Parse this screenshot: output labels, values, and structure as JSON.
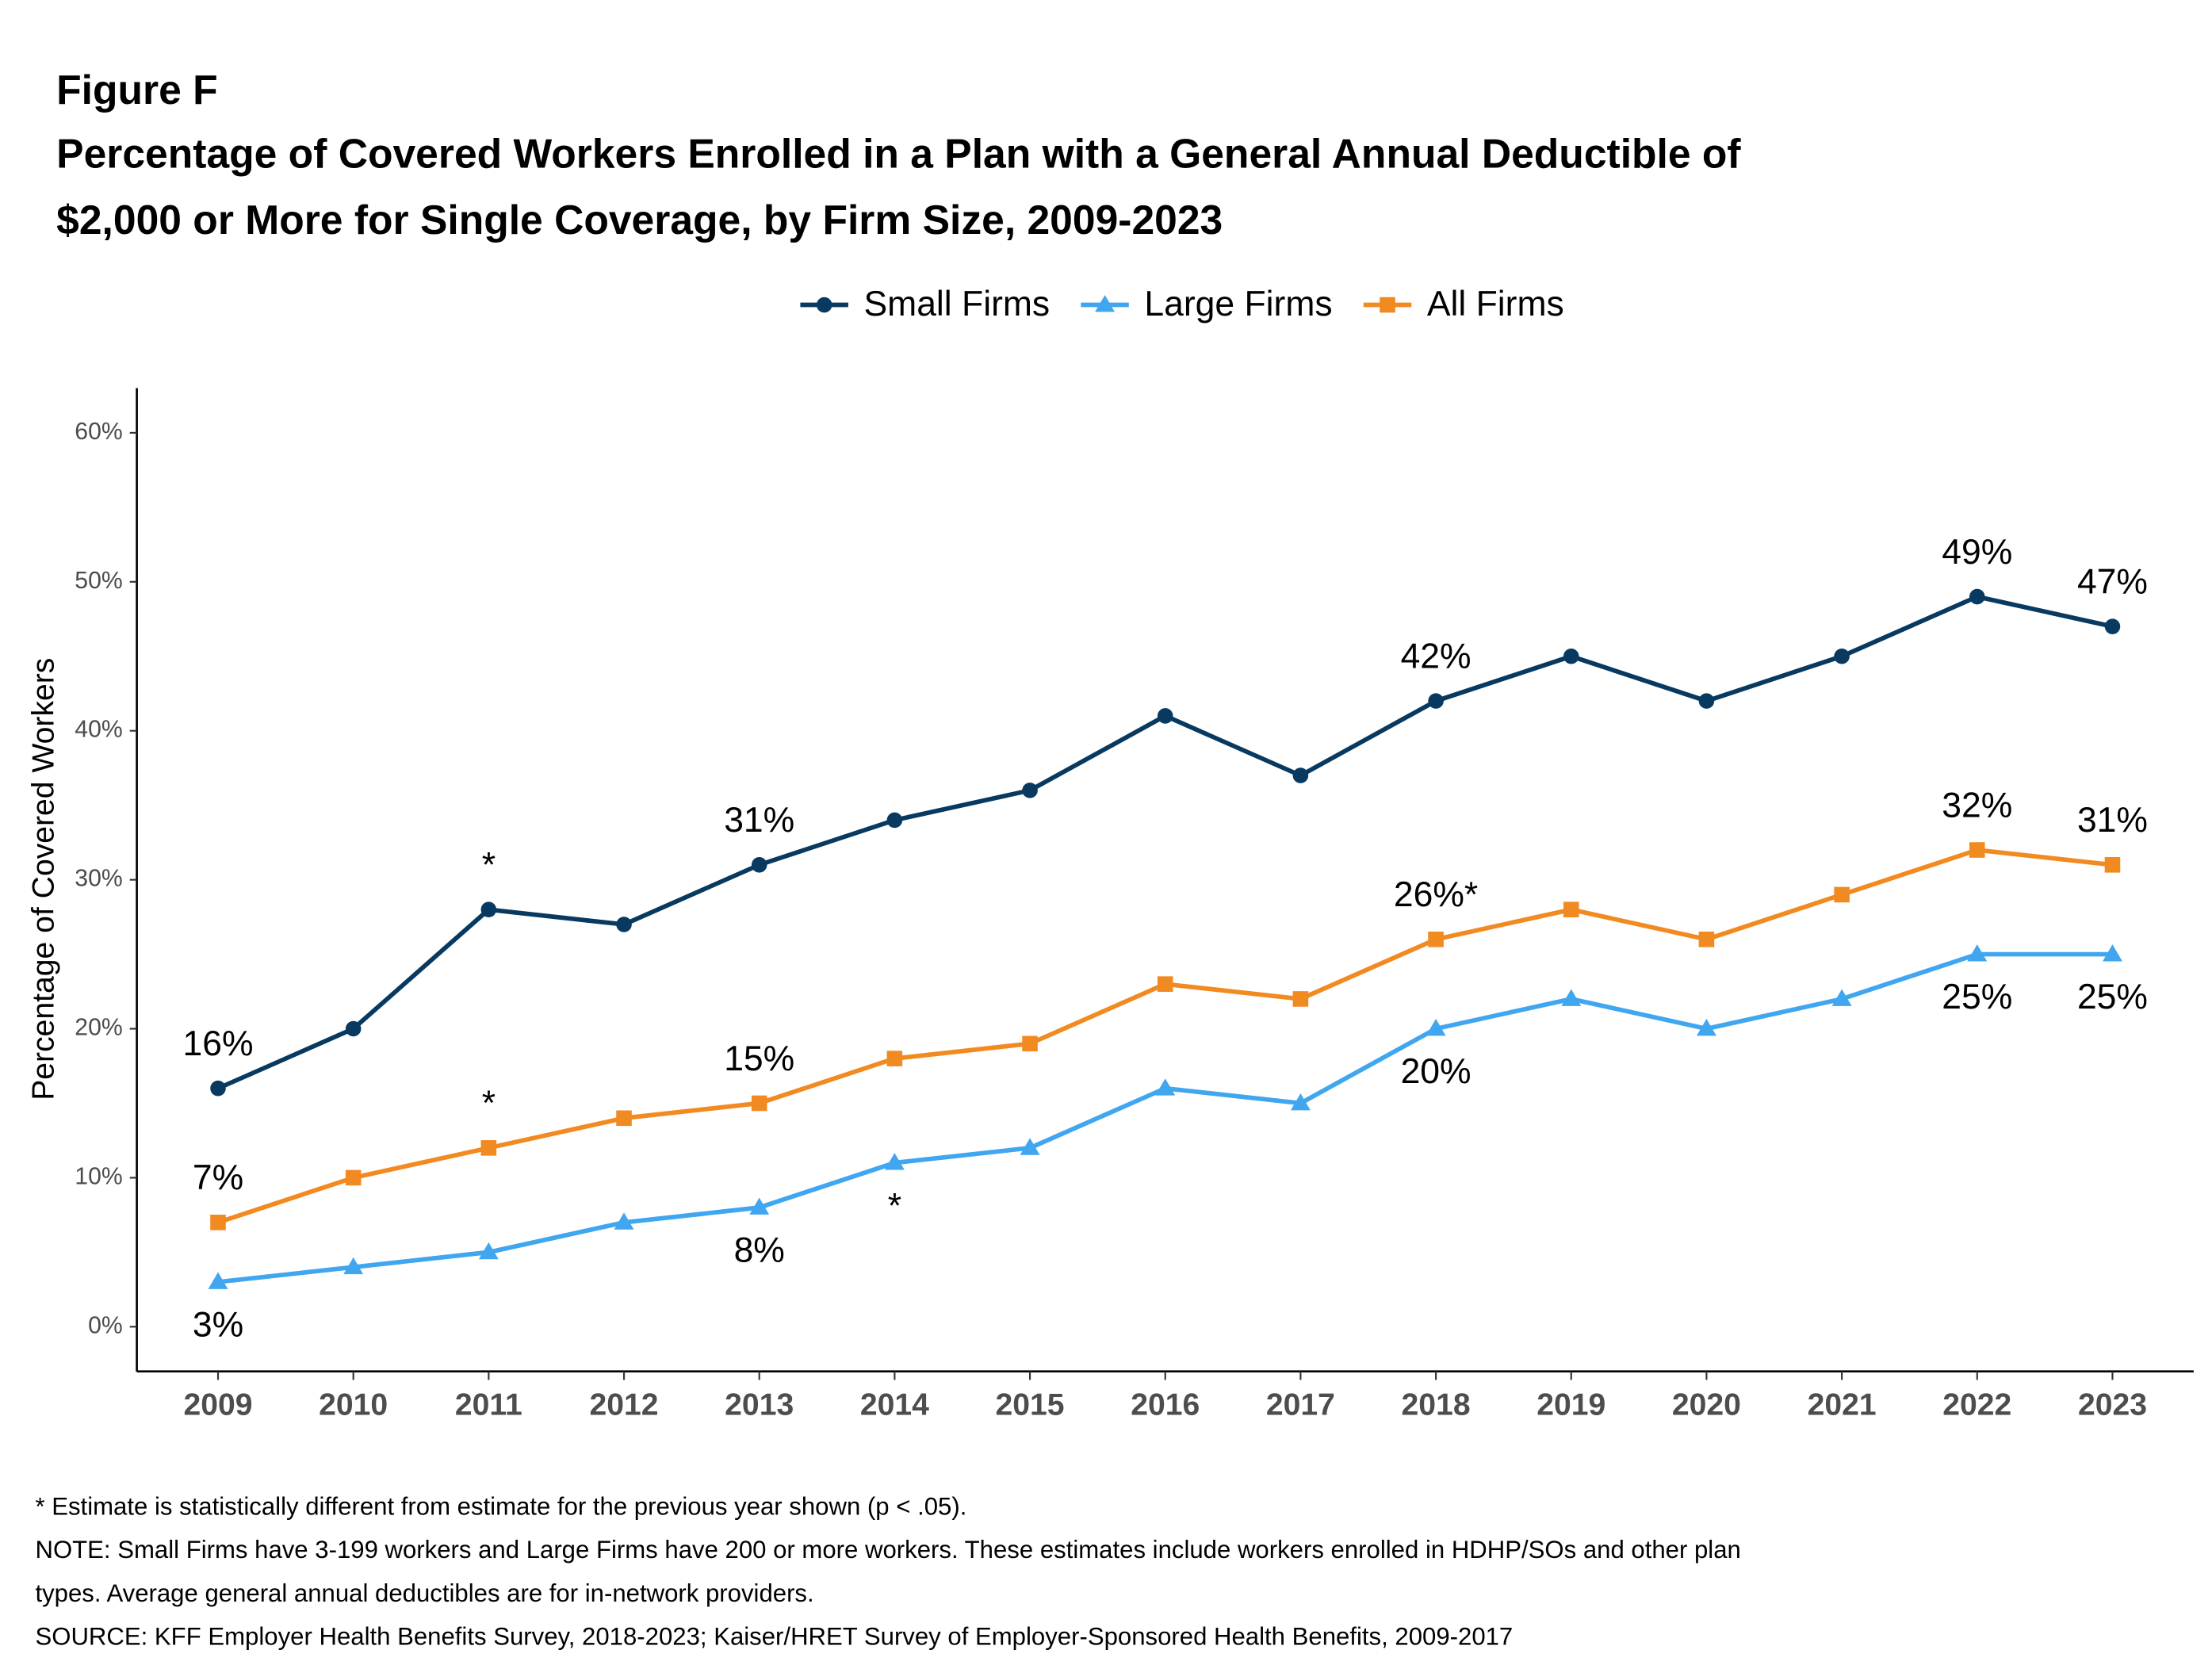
{
  "chart_data": {
    "type": "line",
    "figure_label": "Figure F",
    "title_lines": [
      "Percentage of Covered Workers Enrolled in a Plan with a General Annual Deductible of",
      "$2,000 or More for Single Coverage, by Firm Size, 2009-2023"
    ],
    "y_axis_label": "Percentage of Covered Workers",
    "categories": [
      "2009",
      "2010",
      "2011",
      "2012",
      "2013",
      "2014",
      "2015",
      "2016",
      "2017",
      "2018",
      "2019",
      "2020",
      "2021",
      "2022",
      "2023"
    ],
    "series": [
      {
        "name": "Small Firms",
        "color": "#083a61",
        "marker": "circle",
        "label_position": "above",
        "values": [
          16,
          20,
          28,
          27,
          31,
          34,
          36,
          41,
          37,
          42,
          45,
          42,
          45,
          49,
          47
        ],
        "value_labels": [
          "16%",
          null,
          "*",
          null,
          "31%",
          null,
          null,
          null,
          null,
          "42%",
          null,
          null,
          null,
          "49%",
          "47%"
        ]
      },
      {
        "name": "Large Firms",
        "color": "#41a6f0",
        "marker": "triangle",
        "label_position": "below",
        "values": [
          3,
          4,
          5,
          7,
          8,
          11,
          12,
          16,
          15,
          20,
          22,
          20,
          22,
          25,
          25
        ],
        "value_labels": [
          "3%",
          null,
          null,
          null,
          "8%",
          "*",
          null,
          null,
          null,
          "20%",
          null,
          null,
          null,
          "25%",
          "25%"
        ]
      },
      {
        "name": "All Firms",
        "color": "#f28a22",
        "marker": "square",
        "label_position": "above",
        "values": [
          7,
          10,
          12,
          14,
          15,
          18,
          19,
          23,
          22,
          26,
          28,
          26,
          29,
          32,
          31
        ],
        "value_labels": [
          "7%",
          null,
          "*",
          null,
          "15%",
          null,
          null,
          null,
          null,
          "26%*",
          null,
          null,
          null,
          "32%",
          "31%"
        ]
      }
    ],
    "ylim": [
      -3,
      63
    ],
    "yticks": [
      {
        "value": 0,
        "label": "0%"
      },
      {
        "value": 10,
        "label": "10%"
      },
      {
        "value": 20,
        "label": "20%"
      },
      {
        "value": 30,
        "label": "30%"
      },
      {
        "value": 40,
        "label": "40%"
      },
      {
        "value": 50,
        "label": "50%"
      },
      {
        "value": 60,
        "label": "60%"
      }
    ],
    "legend_position": "top",
    "footnotes": [
      "* Estimate is statistically different from estimate for the previous year shown (p < .05).",
      "NOTE: Small Firms have 3-199 workers and Large Firms have 200 or more workers. These estimates include workers enrolled in HDHP/SOs and other plan",
      "types. Average general annual deductibles are for in-network providers.",
      "SOURCE: KFF Employer Health Benefits Survey, 2018-2023; Kaiser/HRET Survey of Employer-Sponsored Health Benefits, 2009-2017"
    ]
  }
}
